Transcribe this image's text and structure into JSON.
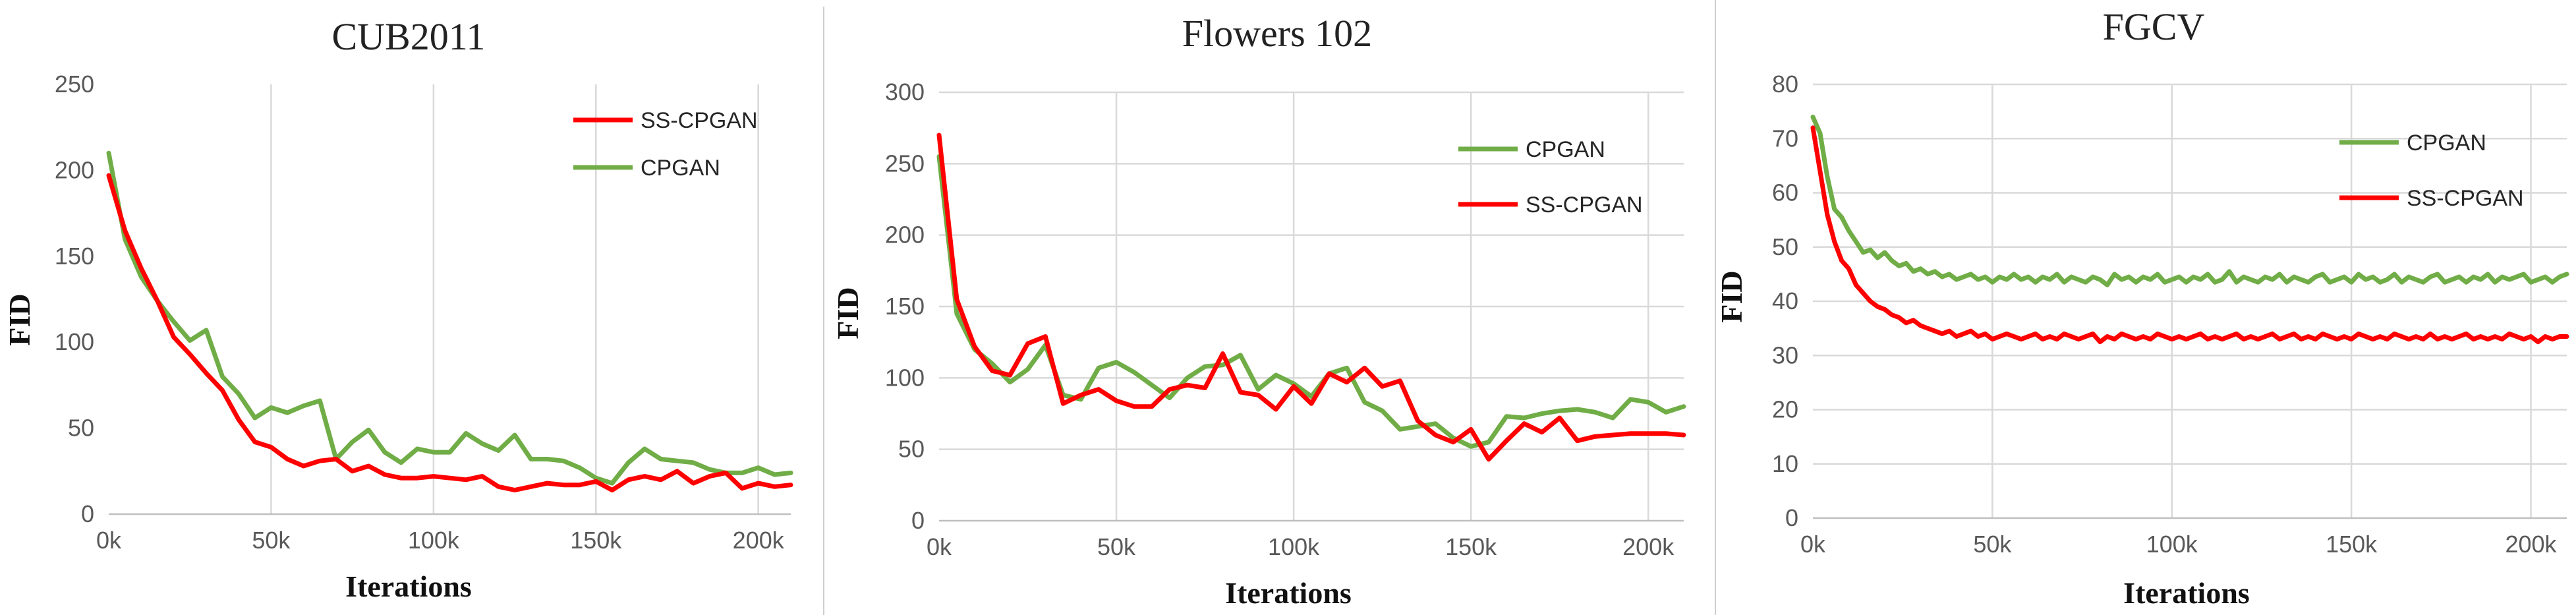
{
  "colors": {
    "ss_cpgan": "#ff0000",
    "cpgan": "#70ad47"
  },
  "chart_data": [
    {
      "type": "line",
      "title": "CUB2011",
      "xlabel": "Iterations",
      "ylabel": "FID",
      "xlim": [
        0,
        210000
      ],
      "ylim": [
        0,
        250
      ],
      "xticks": [
        0,
        50000,
        100000,
        150000,
        200000
      ],
      "xtick_labels": [
        "0k",
        "50k",
        "100k",
        "150k",
        "200k"
      ],
      "yticks": [
        0,
        50,
        100,
        150,
        200,
        250
      ],
      "ytick_labels": [
        "0",
        "50",
        "100",
        "150",
        "200",
        "250"
      ],
      "grid": "vertical",
      "legend": "top-right",
      "legend_order": [
        "SS-CPGAN",
        "CPGAN"
      ],
      "series": [
        {
          "name": "SS-CPGAN",
          "color": "#ff0000",
          "x": [
            0,
            5000,
            10000,
            15000,
            20000,
            25000,
            30000,
            35000,
            40000,
            45000,
            50000,
            55000,
            60000,
            65000,
            70000,
            75000,
            80000,
            85000,
            90000,
            95000,
            100000,
            105000,
            110000,
            115000,
            120000,
            125000,
            130000,
            135000,
            140000,
            145000,
            150000,
            155000,
            160000,
            165000,
            170000,
            175000,
            180000,
            185000,
            190000,
            195000,
            200000,
            205000,
            210000
          ],
          "y": [
            197,
            165,
            143,
            124,
            103,
            93,
            82,
            72,
            55,
            42,
            39,
            32,
            28,
            31,
            32,
            25,
            28,
            23,
            21,
            21,
            22,
            21,
            20,
            22,
            16,
            14,
            16,
            18,
            17,
            17,
            19,
            14,
            20,
            22,
            20,
            25,
            18,
            22,
            24,
            15,
            18,
            16,
            17
          ]
        },
        {
          "name": "CPGAN",
          "color": "#70ad47",
          "x": [
            0,
            5000,
            10000,
            15000,
            20000,
            25000,
            30000,
            35000,
            40000,
            45000,
            50000,
            55000,
            60000,
            65000,
            70000,
            75000,
            80000,
            85000,
            90000,
            95000,
            100000,
            105000,
            110000,
            115000,
            120000,
            125000,
            130000,
            135000,
            140000,
            145000,
            150000,
            155000,
            160000,
            165000,
            170000,
            175000,
            180000,
            185000,
            190000,
            195000,
            200000,
            205000,
            210000
          ],
          "y": [
            210,
            160,
            138,
            124,
            112,
            101,
            107,
            80,
            70,
            56,
            62,
            59,
            63,
            66,
            32,
            42,
            49,
            36,
            30,
            38,
            36,
            36,
            47,
            41,
            37,
            46,
            32,
            32,
            31,
            27,
            21,
            18,
            30,
            38,
            32,
            31,
            30,
            26,
            24,
            24,
            27,
            23,
            24
          ]
        }
      ]
    },
    {
      "type": "line",
      "title": "Flowers 102",
      "xlabel": "Iterations",
      "ylabel": "FID",
      "xlim": [
        0,
        210000
      ],
      "ylim": [
        0,
        300
      ],
      "xticks": [
        0,
        50000,
        100000,
        150000,
        200000
      ],
      "xtick_labels": [
        "0k",
        "50k",
        "100k",
        "150k",
        "200k"
      ],
      "yticks": [
        0,
        50,
        100,
        150,
        200,
        250,
        300
      ],
      "ytick_labels": [
        "0",
        "50",
        "100",
        "150",
        "200",
        "250",
        "300"
      ],
      "grid": "both",
      "legend": "right",
      "legend_order": [
        "CPGAN",
        "SS-CPGAN"
      ],
      "series": [
        {
          "name": "SS-CPGAN",
          "color": "#ff0000",
          "x": [
            0,
            5000,
            10000,
            15000,
            20000,
            25000,
            30000,
            35000,
            40000,
            45000,
            50000,
            55000,
            60000,
            65000,
            70000,
            75000,
            80000,
            85000,
            90000,
            95000,
            100000,
            105000,
            110000,
            115000,
            120000,
            125000,
            130000,
            135000,
            140000,
            145000,
            150000,
            155000,
            160000,
            165000,
            170000,
            175000,
            180000,
            185000,
            190000,
            195000,
            200000,
            205000,
            210000
          ],
          "y": [
            270,
            155,
            122,
            105,
            102,
            124,
            129,
            82,
            88,
            92,
            84,
            80,
            80,
            92,
            95,
            93,
            117,
            90,
            88,
            78,
            94,
            82,
            103,
            97,
            107,
            94,
            98,
            70,
            60,
            55,
            64,
            43,
            56,
            68,
            62,
            72,
            56,
            59,
            60,
            61,
            61,
            61,
            60
          ]
        },
        {
          "name": "CPGAN",
          "color": "#70ad47",
          "x": [
            0,
            5000,
            10000,
            15000,
            20000,
            25000,
            30000,
            35000,
            40000,
            45000,
            50000,
            55000,
            60000,
            65000,
            70000,
            75000,
            80000,
            85000,
            90000,
            95000,
            100000,
            105000,
            110000,
            115000,
            120000,
            125000,
            130000,
            135000,
            140000,
            145000,
            150000,
            155000,
            160000,
            165000,
            170000,
            175000,
            180000,
            185000,
            190000,
            195000,
            200000,
            205000,
            210000
          ],
          "y": [
            255,
            145,
            120,
            110,
            97,
            106,
            123,
            88,
            85,
            107,
            111,
            104,
            95,
            86,
            100,
            108,
            109,
            116,
            92,
            102,
            96,
            87,
            103,
            107,
            83,
            77,
            64,
            66,
            68,
            58,
            52,
            55,
            73,
            72,
            75,
            77,
            78,
            76,
            72,
            85,
            83,
            76,
            80
          ]
        }
      ]
    },
    {
      "type": "line",
      "title": "FGCV",
      "xlabel": "Iterations",
      "ylabel": "FID",
      "xlim": [
        0,
        210000
      ],
      "ylim": [
        0,
        80
      ],
      "xticks": [
        0,
        50000,
        100000,
        150000,
        200000
      ],
      "xtick_labels": [
        "0k",
        "50k",
        "100k",
        "150k",
        "200k"
      ],
      "yticks": [
        0,
        10,
        20,
        30,
        40,
        50,
        60,
        70,
        80
      ],
      "ytick_labels": [
        "0",
        "10",
        "20",
        "30",
        "40",
        "50",
        "60",
        "70",
        "80"
      ],
      "grid": "both",
      "legend": "top-right",
      "legend_order": [
        "CPGAN",
        "SS-CPGAN"
      ],
      "series": [
        {
          "name": "CPGAN",
          "color": "#70ad47",
          "x": [
            0,
            2000,
            4000,
            6000,
            8000,
            10000,
            12000,
            14000,
            16000,
            18000,
            20000,
            22000,
            24000,
            26000,
            28000,
            30000,
            32000,
            34000,
            36000,
            38000,
            40000,
            42000,
            44000,
            46000,
            48000,
            50000,
            52000,
            54000,
            56000,
            58000,
            60000,
            62000,
            64000,
            66000,
            68000,
            70000,
            72000,
            74000,
            76000,
            78000,
            80000,
            82000,
            84000,
            86000,
            88000,
            90000,
            92000,
            94000,
            96000,
            98000,
            100000,
            102000,
            104000,
            106000,
            108000,
            110000,
            112000,
            114000,
            116000,
            118000,
            120000,
            122000,
            124000,
            126000,
            128000,
            130000,
            132000,
            134000,
            136000,
            138000,
            140000,
            142000,
            144000,
            146000,
            148000,
            150000,
            152000,
            154000,
            156000,
            158000,
            160000,
            162000,
            164000,
            166000,
            168000,
            170000,
            172000,
            174000,
            176000,
            178000,
            180000,
            182000,
            184000,
            186000,
            188000,
            190000,
            192000,
            194000,
            196000,
            198000,
            200000,
            202000,
            204000,
            206000,
            208000,
            210000
          ],
          "y": [
            74,
            71,
            63,
            57,
            55.5,
            53,
            51,
            49,
            49.5,
            48,
            49,
            47.5,
            46.5,
            47,
            45.5,
            46,
            45,
            45.5,
            44.5,
            45,
            44,
            44.5,
            45,
            44,
            44.5,
            43.5,
            44.5,
            44,
            45,
            44,
            44.5,
            43.5,
            44.5,
            44,
            45,
            43.5,
            44.5,
            44,
            43.5,
            44.5,
            44,
            43,
            45,
            44,
            44.5,
            43.5,
            44.5,
            44,
            45,
            43.5,
            44,
            44.5,
            43.5,
            44.5,
            44,
            45,
            43.5,
            44,
            45.5,
            43.5,
            44.5,
            44,
            43.5,
            44.5,
            44,
            45,
            43.5,
            44.5,
            44,
            43.5,
            44.5,
            45,
            43.5,
            44,
            44.5,
            43.5,
            45,
            44,
            44.5,
            43.5,
            44,
            45,
            43.5,
            44.5,
            44,
            43.5,
            44.5,
            45,
            43.5,
            44,
            44.5,
            43.5,
            44.5,
            44,
            45,
            43.5,
            44.5,
            44,
            44.5,
            45,
            43.5,
            44,
            44.5,
            43.5,
            44.5,
            45
          ]
        },
        {
          "name": "SS-CPGAN",
          "color": "#ff0000",
          "x": [
            0,
            2000,
            4000,
            6000,
            8000,
            10000,
            12000,
            14000,
            16000,
            18000,
            20000,
            22000,
            24000,
            26000,
            28000,
            30000,
            32000,
            34000,
            36000,
            38000,
            40000,
            42000,
            44000,
            46000,
            48000,
            50000,
            52000,
            54000,
            56000,
            58000,
            60000,
            62000,
            64000,
            66000,
            68000,
            70000,
            72000,
            74000,
            76000,
            78000,
            80000,
            82000,
            84000,
            86000,
            88000,
            90000,
            92000,
            94000,
            96000,
            98000,
            100000,
            102000,
            104000,
            106000,
            108000,
            110000,
            112000,
            114000,
            116000,
            118000,
            120000,
            122000,
            124000,
            126000,
            128000,
            130000,
            132000,
            134000,
            136000,
            138000,
            140000,
            142000,
            144000,
            146000,
            148000,
            150000,
            152000,
            154000,
            156000,
            158000,
            160000,
            162000,
            164000,
            166000,
            168000,
            170000,
            172000,
            174000,
            176000,
            178000,
            180000,
            182000,
            184000,
            186000,
            188000,
            190000,
            192000,
            194000,
            196000,
            198000,
            200000,
            202000,
            204000,
            206000,
            208000,
            210000
          ],
          "y": [
            72,
            64,
            56,
            51,
            47.5,
            46,
            43,
            41.5,
            40,
            39,
            38.5,
            37.5,
            37,
            36,
            36.5,
            35.5,
            35,
            34.5,
            34,
            34.5,
            33.5,
            34,
            34.5,
            33.5,
            34,
            33,
            33.5,
            34,
            33.5,
            33,
            33.5,
            34,
            33,
            33.5,
            33,
            34,
            33.5,
            33,
            33.5,
            34,
            32.5,
            33.5,
            33,
            34,
            33.5,
            33,
            33.5,
            33,
            34,
            33.5,
            33,
            33.5,
            33,
            33.5,
            34,
            33,
            33.5,
            33,
            33.5,
            34,
            33,
            33.5,
            33,
            33.5,
            34,
            33,
            33.5,
            34,
            33,
            33.5,
            33,
            34,
            33.5,
            33,
            33.5,
            33,
            34,
            33.5,
            33,
            33.5,
            33,
            34,
            33.5,
            33,
            33.5,
            33,
            34,
            33,
            33.5,
            33,
            33.5,
            34,
            33,
            33.5,
            33,
            33.5,
            33,
            34,
            33.5,
            33,
            33.5,
            32.5,
            33.5,
            33,
            33.5,
            33.5
          ]
        }
      ]
    }
  ]
}
